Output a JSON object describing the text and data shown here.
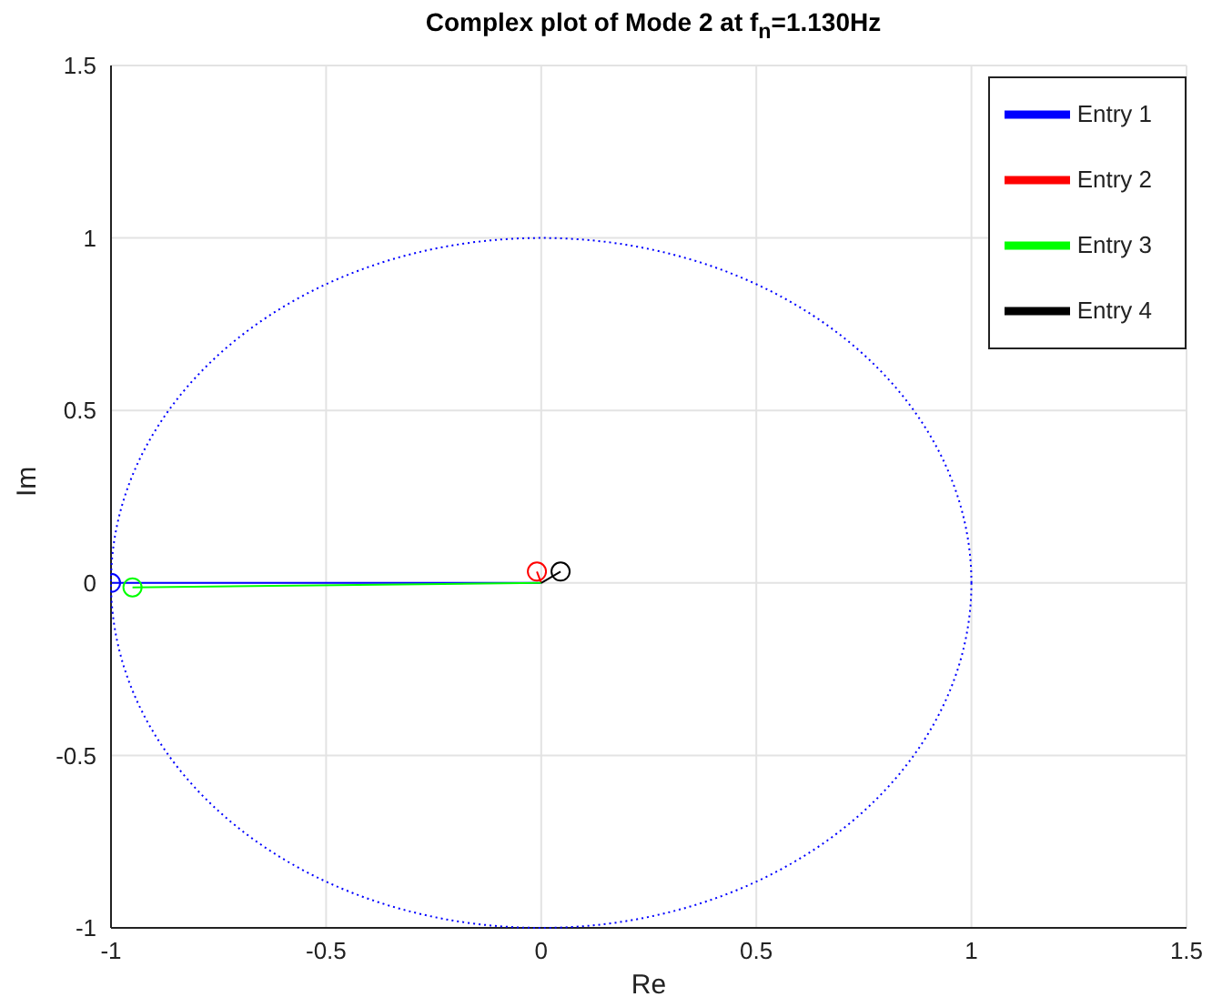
{
  "chart_data": {
    "type": "line",
    "title": "Complex plot of Mode 2 at f$_{n}$=1.130Hz",
    "xlabel": "Re",
    "ylabel": "Im",
    "xlim": [
      -1,
      1.5
    ],
    "xticks": [
      -1,
      -0.5,
      0,
      0.5,
      1,
      1.5
    ],
    "ylim": [
      -1,
      1.5
    ],
    "yticks": [
      -1,
      -0.5,
      0,
      0.5,
      1,
      1.5
    ],
    "grid": true,
    "legend": "top right",
    "series": [
      {
        "type": "line",
        "name": "Entry 1",
        "color": "#0000ff",
        "line_style": "solid",
        "marker": "circle",
        "x": [
          0,
          -1
        ],
        "values": [
          0,
          0
        ]
      },
      {
        "type": "line",
        "name": "Entry 2",
        "color": "#ff0000",
        "line_style": "solid",
        "marker": "circle",
        "x": [
          0,
          -0.01
        ],
        "values": [
          0,
          0.033
        ]
      },
      {
        "type": "line",
        "name": "Entry 3",
        "color": "#00ff00",
        "line_style": "solid",
        "marker": "circle",
        "x": [
          0,
          -0.95
        ],
        "values": [
          0,
          -0.013
        ]
      },
      {
        "type": "line",
        "name": "Entry 4",
        "color": "#000000",
        "line_style": "solid",
        "marker": "circle",
        "x": [
          0,
          0.045
        ],
        "values": [
          0,
          0.033
        ]
      }
    ]
  }
}
